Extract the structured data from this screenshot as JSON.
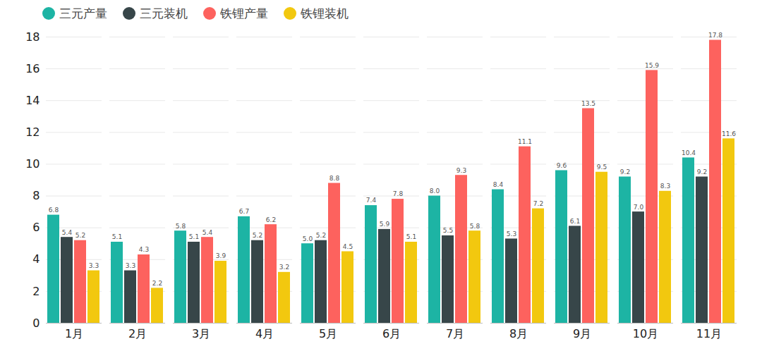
{
  "chart_data": {
    "type": "bar",
    "categories": [
      "1月",
      "2月",
      "3月",
      "4月",
      "5月",
      "6月",
      "7月",
      "8月",
      "9月",
      "10月",
      "11月"
    ],
    "series": [
      {
        "name": "三元产量",
        "color": "#1db4a4",
        "values": [
          6.8,
          5.1,
          5.8,
          6.7,
          5.0,
          7.4,
          8.0,
          8.4,
          9.6,
          9.2,
          10.4
        ],
        "value_labels": [
          "6.8",
          "5.1",
          "5.8",
          "6.7",
          "5.0",
          "7.4",
          "8.0",
          "8.4",
          "9.6",
          "9.2",
          "10.4"
        ]
      },
      {
        "name": "三元装机",
        "color": "#374649",
        "values": [
          5.4,
          3.3,
          5.1,
          5.2,
          5.2,
          5.9,
          5.5,
          5.3,
          6.1,
          7.0,
          9.2
        ],
        "value_labels": [
          "5.4",
          "3.3",
          "5.1",
          "5.2",
          "5.2",
          "5.9",
          "5.5",
          "5.3",
          "6.1",
          "7.0",
          "9.2"
        ]
      },
      {
        "name": "铁锂产量",
        "color": "#fd625e",
        "values": [
          5.2,
          4.3,
          5.4,
          6.2,
          8.8,
          7.8,
          9.3,
          11.1,
          13.5,
          15.9,
          17.8
        ],
        "value_labels": [
          "5.2",
          "4.3",
          "5.4",
          "6.2",
          "8.8",
          "7.8",
          "9.3",
          "11.1",
          "13.5",
          "15.9",
          "17.8"
        ]
      },
      {
        "name": "铁锂装机",
        "color": "#f2c80f",
        "values": [
          3.3,
          2.2,
          3.9,
          3.2,
          4.5,
          5.1,
          5.8,
          7.2,
          9.5,
          8.3,
          11.6
        ],
        "value_labels": [
          "3.3",
          "2.2",
          "3.9",
          "3.2",
          "4.5",
          "5.1",
          "5.8",
          "7.2",
          "9.5",
          "8.3",
          "11.6"
        ]
      }
    ],
    "ylim": [
      0,
      18
    ],
    "yticks": [
      0,
      2,
      4,
      6,
      8,
      10,
      12,
      14,
      16,
      18
    ],
    "grid": true,
    "legend": "top-left",
    "data_labels": true
  }
}
